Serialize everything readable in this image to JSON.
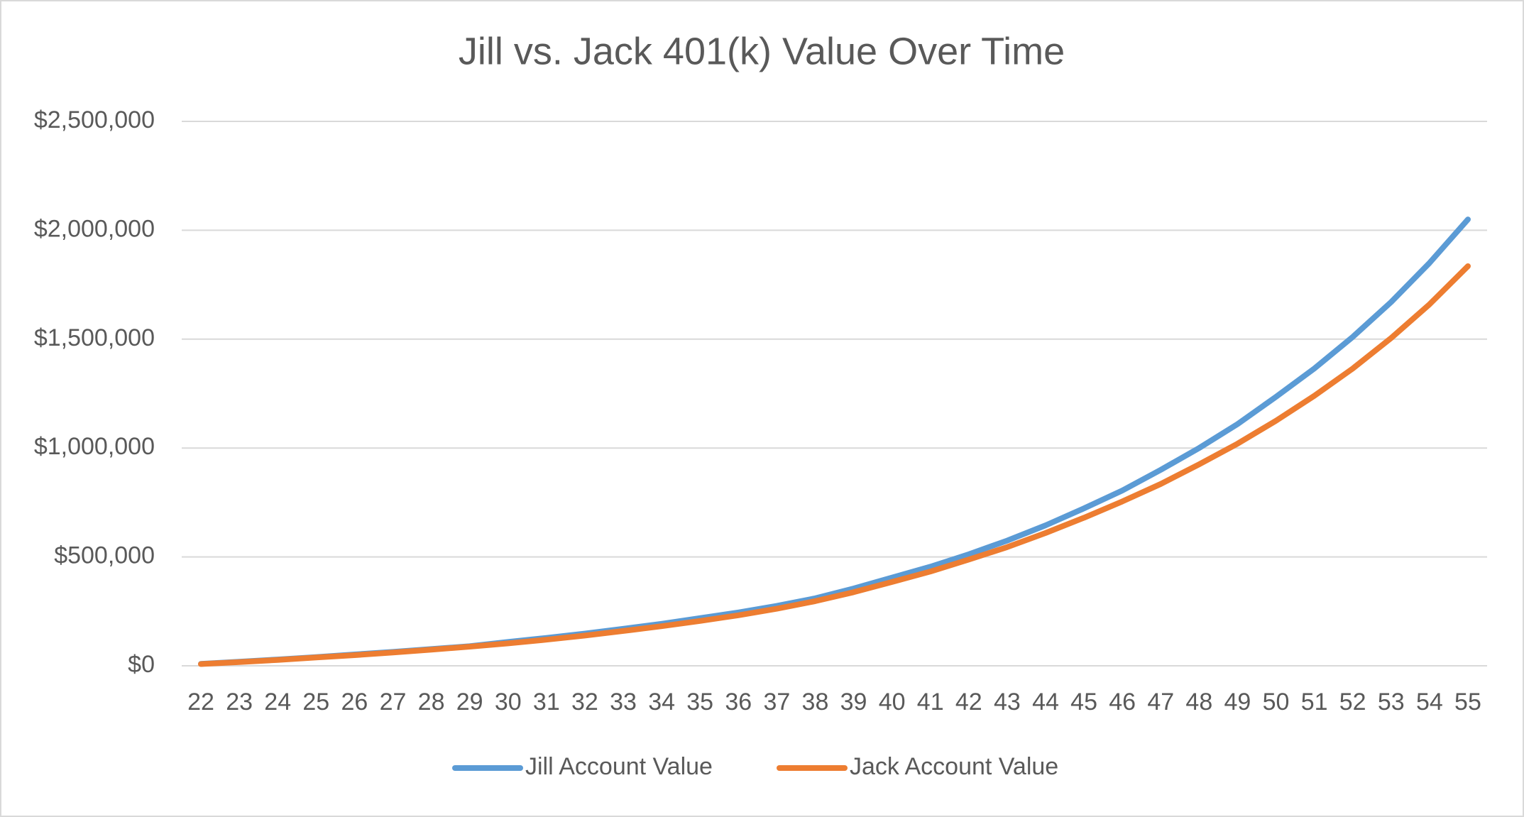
{
  "chart_data": {
    "type": "line",
    "title": "Jill vs. Jack 401(k) Value Over Time",
    "categories": [
      "22",
      "23",
      "24",
      "25",
      "26",
      "27",
      "28",
      "29",
      "30",
      "31",
      "32",
      "33",
      "34",
      "35",
      "36",
      "37",
      "38",
      "39",
      "40",
      "41",
      "42",
      "43",
      "44",
      "45",
      "46",
      "47",
      "48",
      "49",
      "50",
      "51",
      "52",
      "53",
      "54",
      "55"
    ],
    "series": [
      {
        "name": "Jill Account Value",
        "color": "#5b9bd5",
        "values": [
          9000,
          19000,
          29000,
          40000,
          52000,
          64000,
          77000,
          90000,
          110000,
          128000,
          148000,
          170000,
          193000,
          219000,
          245000,
          275000,
          310000,
          355000,
          405000,
          455000,
          512000,
          575000,
          645000,
          723000,
          805000,
          900000,
          1000000,
          1110000,
          1235000,
          1365000,
          1510000,
          1670000,
          1850000,
          2050000
        ]
      },
      {
        "name": "Jack Account Value",
        "color": "#ed7d31",
        "values": [
          8000,
          17000,
          27000,
          38000,
          49000,
          61000,
          74000,
          88000,
          103000,
          120000,
          139000,
          160000,
          182000,
          206000,
          232000,
          262000,
          297000,
          338000,
          385000,
          433000,
          488000,
          545000,
          610000,
          680000,
          755000,
          835000,
          925000,
          1020000,
          1125000,
          1240000,
          1365000,
          1505000,
          1660000,
          1835000
        ]
      }
    ],
    "ylim": [
      0,
      2500000
    ],
    "yticks": [
      {
        "value": 0,
        "label": "$0"
      },
      {
        "value": 500000,
        "label": "$500,000"
      },
      {
        "value": 1000000,
        "label": "$1,000,000"
      },
      {
        "value": 1500000,
        "label": "$1,500,000"
      },
      {
        "value": 2000000,
        "label": "$2,000,000"
      },
      {
        "value": 2500000,
        "label": "$2,500,000"
      }
    ],
    "grid": true,
    "legend": "bottom"
  }
}
